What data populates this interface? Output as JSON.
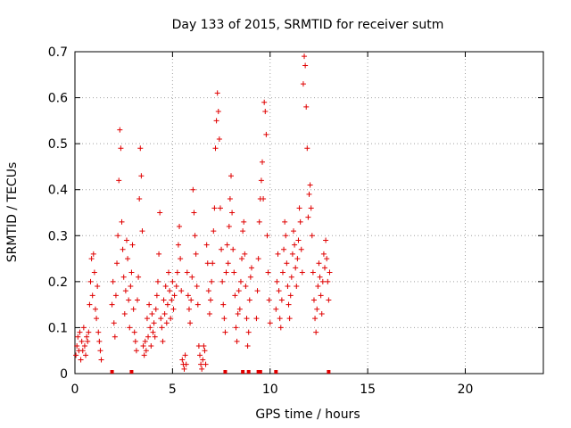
{
  "chart_data": {
    "type": "scatter",
    "title": "Day 133 of 2015, SRMTID for receiver sutm",
    "xlabel": "GPS time / hours",
    "ylabel": "SRMTID / TECUs",
    "xlim": [
      0,
      24
    ],
    "ylim": [
      0,
      0.7
    ],
    "xticks": [
      0,
      5,
      10,
      15,
      20
    ],
    "xtick_labels": [
      "0",
      "5",
      "10",
      "15",
      "20"
    ],
    "yticks": [
      0,
      0.1,
      0.2,
      0.3,
      0.4,
      0.5,
      0.6,
      0.7
    ],
    "ytick_labels": [
      "0",
      "0.1",
      "0.2",
      "0.3",
      "0.4",
      "0.5",
      "0.6",
      "0.7"
    ],
    "grid": true,
    "marker": "plus",
    "color": "#e00000",
    "series": [
      {
        "name": "SRMTID",
        "points": [
          [
            0.05,
            0.04
          ],
          [
            0.1,
            0.06
          ],
          [
            0.15,
            0.08
          ],
          [
            0.2,
            0.05
          ],
          [
            0.25,
            0.09
          ],
          [
            0.3,
            0.03
          ],
          [
            0.35,
            0.07
          ],
          [
            0.4,
            0.05
          ],
          [
            0.45,
            0.1
          ],
          [
            0.5,
            0.06
          ],
          [
            0.55,
            0.04
          ],
          [
            0.6,
            0.08
          ],
          [
            0.65,
            0.07
          ],
          [
            0.7,
            0.09
          ],
          [
            0.75,
            0.15
          ],
          [
            0.8,
            0.2
          ],
          [
            0.85,
            0.25
          ],
          [
            0.9,
            0.17
          ],
          [
            0.95,
            0.26
          ],
          [
            1.0,
            0.22
          ],
          [
            1.05,
            0.14
          ],
          [
            1.1,
            0.12
          ],
          [
            1.15,
            0.19
          ],
          [
            1.2,
            0.09
          ],
          [
            1.25,
            0.07
          ],
          [
            1.3,
            0.05
          ],
          [
            1.35,
            0.03
          ],
          [
            1.9,
            0.15
          ],
          [
            1.95,
            0.2
          ],
          [
            2.0,
            0.11
          ],
          [
            2.05,
            0.08
          ],
          [
            2.1,
            0.17
          ],
          [
            2.15,
            0.24
          ],
          [
            2.2,
            0.3
          ],
          [
            2.25,
            0.42
          ],
          [
            2.3,
            0.53
          ],
          [
            2.35,
            0.49
          ],
          [
            2.4,
            0.33
          ],
          [
            2.45,
            0.27
          ],
          [
            2.5,
            0.21
          ],
          [
            2.55,
            0.13
          ],
          [
            2.6,
            0.18
          ],
          [
            2.65,
            0.29
          ],
          [
            2.7,
            0.25
          ],
          [
            2.75,
            0.16
          ],
          [
            2.8,
            0.1
          ],
          [
            2.85,
            0.19
          ],
          [
            2.9,
            0.22
          ],
          [
            2.95,
            0.28
          ],
          [
            3.0,
            0.14
          ],
          [
            3.05,
            0.09
          ],
          [
            3.1,
            0.07
          ],
          [
            3.15,
            0.05
          ],
          [
            3.2,
            0.16
          ],
          [
            3.25,
            0.21
          ],
          [
            3.3,
            0.38
          ],
          [
            3.35,
            0.49
          ],
          [
            3.4,
            0.43
          ],
          [
            3.45,
            0.31
          ],
          [
            3.5,
            0.06
          ],
          [
            3.55,
            0.04
          ],
          [
            3.6,
            0.07
          ],
          [
            3.65,
            0.05
          ],
          [
            3.7,
            0.12
          ],
          [
            3.75,
            0.08
          ],
          [
            3.8,
            0.15
          ],
          [
            3.85,
            0.1
          ],
          [
            3.9,
            0.06
          ],
          [
            3.95,
            0.13
          ],
          [
            4.0,
            0.09
          ],
          [
            4.05,
            0.11
          ],
          [
            4.1,
            0.08
          ],
          [
            4.15,
            0.14
          ],
          [
            4.2,
            0.17
          ],
          [
            4.25,
            0.2
          ],
          [
            4.3,
            0.26
          ],
          [
            4.35,
            0.35
          ],
          [
            4.4,
            0.12
          ],
          [
            4.45,
            0.1
          ],
          [
            4.5,
            0.07
          ],
          [
            4.55,
            0.16
          ],
          [
            4.6,
            0.13
          ],
          [
            4.65,
            0.19
          ],
          [
            4.7,
            0.11
          ],
          [
            4.75,
            0.15
          ],
          [
            4.8,
            0.22
          ],
          [
            4.85,
            0.18
          ],
          [
            4.9,
            0.12
          ],
          [
            4.95,
            0.16
          ],
          [
            5.0,
            0.2
          ],
          [
            5.05,
            0.14
          ],
          [
            5.1,
            0.17
          ],
          [
            5.2,
            0.19
          ],
          [
            5.25,
            0.22
          ],
          [
            5.3,
            0.28
          ],
          [
            5.35,
            0.32
          ],
          [
            5.4,
            0.25
          ],
          [
            5.45,
            0.18
          ],
          [
            5.5,
            0.03
          ],
          [
            5.55,
            0.02
          ],
          [
            5.6,
            0.01
          ],
          [
            5.65,
            0.04
          ],
          [
            5.7,
            0.02
          ],
          [
            5.75,
            0.22
          ],
          [
            5.8,
            0.17
          ],
          [
            5.85,
            0.14
          ],
          [
            5.9,
            0.11
          ],
          [
            5.95,
            0.16
          ],
          [
            6.0,
            0.21
          ],
          [
            6.05,
            0.4
          ],
          [
            6.1,
            0.35
          ],
          [
            6.15,
            0.3
          ],
          [
            6.2,
            0.26
          ],
          [
            6.25,
            0.19
          ],
          [
            6.3,
            0.15
          ],
          [
            6.35,
            0.06
          ],
          [
            6.4,
            0.04
          ],
          [
            6.45,
            0.02
          ],
          [
            6.5,
            0.01
          ],
          [
            6.55,
            0.03
          ],
          [
            6.6,
            0.06
          ],
          [
            6.65,
            0.05
          ],
          [
            6.7,
            0.02
          ],
          [
            6.75,
            0.28
          ],
          [
            6.8,
            0.24
          ],
          [
            6.85,
            0.18
          ],
          [
            6.9,
            0.13
          ],
          [
            6.95,
            0.16
          ],
          [
            7.0,
            0.2
          ],
          [
            7.05,
            0.24
          ],
          [
            7.1,
            0.31
          ],
          [
            7.15,
            0.36
          ],
          [
            7.2,
            0.49
          ],
          [
            7.25,
            0.55
          ],
          [
            7.3,
            0.61
          ],
          [
            7.35,
            0.57
          ],
          [
            7.4,
            0.51
          ],
          [
            7.45,
            0.36
          ],
          [
            7.5,
            0.27
          ],
          [
            7.55,
            0.2
          ],
          [
            7.6,
            0.15
          ],
          [
            7.65,
            0.12
          ],
          [
            7.7,
            0.09
          ],
          [
            7.75,
            0.22
          ],
          [
            7.8,
            0.28
          ],
          [
            7.85,
            0.24
          ],
          [
            7.9,
            0.32
          ],
          [
            7.95,
            0.38
          ],
          [
            8.0,
            0.43
          ],
          [
            8.05,
            0.35
          ],
          [
            8.1,
            0.27
          ],
          [
            8.15,
            0.22
          ],
          [
            8.2,
            0.17
          ],
          [
            8.25,
            0.1
          ],
          [
            8.3,
            0.07
          ],
          [
            8.35,
            0.13
          ],
          [
            8.4,
            0.18
          ],
          [
            8.45,
            0.14
          ],
          [
            8.5,
            0.2
          ],
          [
            8.55,
            0.25
          ],
          [
            8.6,
            0.31
          ],
          [
            8.65,
            0.33
          ],
          [
            8.7,
            0.26
          ],
          [
            8.75,
            0.19
          ],
          [
            8.8,
            0.12
          ],
          [
            8.85,
            0.06
          ],
          [
            8.9,
            0.09
          ],
          [
            8.95,
            0.16
          ],
          [
            9.0,
            0.21
          ],
          [
            9.05,
            0.23
          ],
          [
            9.3,
            0.12
          ],
          [
            9.35,
            0.18
          ],
          [
            9.4,
            0.25
          ],
          [
            9.45,
            0.33
          ],
          [
            9.5,
            0.38
          ],
          [
            9.55,
            0.42
          ],
          [
            9.6,
            0.46
          ],
          [
            9.65,
            0.38
          ],
          [
            9.7,
            0.59
          ],
          [
            9.75,
            0.57
          ],
          [
            9.8,
            0.52
          ],
          [
            9.85,
            0.3
          ],
          [
            9.9,
            0.22
          ],
          [
            9.95,
            0.16
          ],
          [
            10.0,
            0.11
          ],
          [
            10.3,
            0.14
          ],
          [
            10.35,
            0.2
          ],
          [
            10.4,
            0.26
          ],
          [
            10.45,
            0.18
          ],
          [
            10.5,
            0.12
          ],
          [
            10.55,
            0.1
          ],
          [
            10.6,
            0.16
          ],
          [
            10.65,
            0.22
          ],
          [
            10.7,
            0.27
          ],
          [
            10.75,
            0.33
          ],
          [
            10.8,
            0.3
          ],
          [
            10.85,
            0.24
          ],
          [
            10.9,
            0.19
          ],
          [
            10.95,
            0.15
          ],
          [
            11.0,
            0.12
          ],
          [
            11.05,
            0.17
          ],
          [
            11.1,
            0.21
          ],
          [
            11.15,
            0.26
          ],
          [
            11.2,
            0.31
          ],
          [
            11.25,
            0.28
          ],
          [
            11.3,
            0.23
          ],
          [
            11.35,
            0.19
          ],
          [
            11.4,
            0.25
          ],
          [
            11.45,
            0.29
          ],
          [
            11.5,
            0.36
          ],
          [
            11.55,
            0.33
          ],
          [
            11.6,
            0.27
          ],
          [
            11.65,
            0.22
          ],
          [
            11.7,
            0.63
          ],
          [
            11.75,
            0.69
          ],
          [
            11.8,
            0.67
          ],
          [
            11.85,
            0.58
          ],
          [
            11.9,
            0.49
          ],
          [
            11.95,
            0.34
          ],
          [
            12.0,
            0.39
          ],
          [
            12.05,
            0.41
          ],
          [
            12.1,
            0.36
          ],
          [
            12.15,
            0.3
          ],
          [
            12.2,
            0.22
          ],
          [
            12.25,
            0.16
          ],
          [
            12.3,
            0.12
          ],
          [
            12.35,
            0.09
          ],
          [
            12.4,
            0.14
          ],
          [
            12.45,
            0.19
          ],
          [
            12.5,
            0.24
          ],
          [
            12.55,
            0.21
          ],
          [
            12.6,
            0.17
          ],
          [
            12.65,
            0.13
          ],
          [
            12.7,
            0.2
          ],
          [
            12.75,
            0.26
          ],
          [
            12.8,
            0.23
          ],
          [
            12.85,
            0.29
          ],
          [
            12.9,
            0.25
          ],
          [
            12.95,
            0.2
          ],
          [
            13.0,
            0.16
          ],
          [
            13.05,
            0.22
          ]
        ]
      }
    ],
    "baseline_markers_x": [
      1.9,
      2.9,
      7.7,
      8.6,
      8.9,
      9.4,
      9.5,
      10.3,
      13.0
    ]
  }
}
